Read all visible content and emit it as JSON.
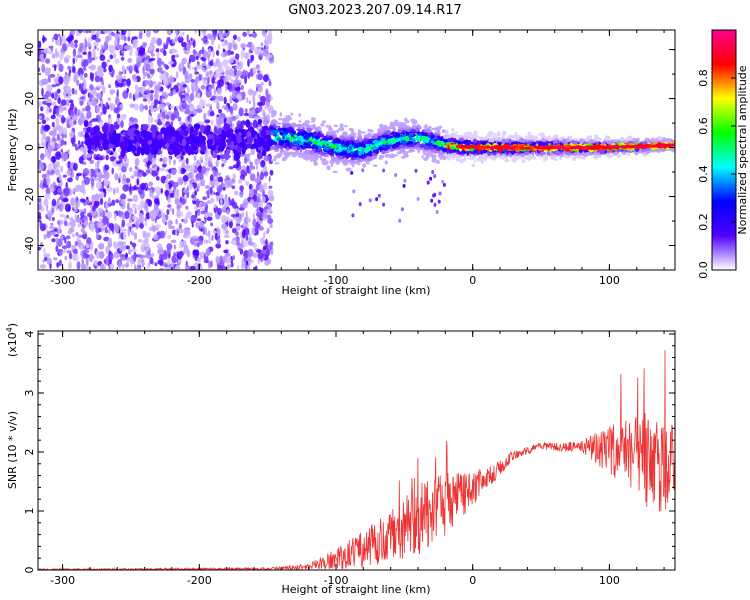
{
  "title": "GN03.2023.207.09.14.R17",
  "chart_data": [
    {
      "type": "heatmap",
      "xlabel": "Height of straight line (km)",
      "ylabel": "Frequency (Hz)",
      "xlim": [
        -318,
        148
      ],
      "ylim": [
        -50,
        48
      ],
      "xticks": [
        -300,
        -200,
        -100,
        0,
        100
      ],
      "yticks": [
        -40,
        -20,
        0,
        20,
        40
      ],
      "noise_region_x": [
        -318,
        -147
      ],
      "band_center": [
        {
          "x": -147,
          "y": 5
        },
        {
          "x": -120,
          "y": 3
        },
        {
          "x": -100,
          "y": 0
        },
        {
          "x": -80,
          "y": -1
        },
        {
          "x": -60,
          "y": 3
        },
        {
          "x": -40,
          "y": 4
        },
        {
          "x": -20,
          "y": 1
        },
        {
          "x": 0,
          "y": 0
        },
        {
          "x": 50,
          "y": 0
        },
        {
          "x": 100,
          "y": 0
        },
        {
          "x": 148,
          "y": 1
        }
      ],
      "colorbar": {
        "label": "Normalized spectral amplitude",
        "range": [
          0,
          1
        ],
        "ticks": [
          "0.0",
          "0.2",
          "0.4",
          "0.6",
          "0.8"
        ],
        "colors": [
          "#ffffff",
          "#5000ff",
          "#0000ff",
          "#00ffff",
          "#00ff00",
          "#ffff00",
          "#ff0000",
          "#ff0090"
        ]
      }
    },
    {
      "type": "line",
      "xlabel": "Height of straight line (km)",
      "ylabel": "SNR (10 * v/v)",
      "scale_label": "(x10",
      "scale_exponent": "4",
      "scale_close": ")",
      "xlim": [
        -318,
        148
      ],
      "ylim": [
        0,
        4.05
      ],
      "xticks": [
        -300,
        -200,
        -100,
        0,
        100
      ],
      "yticks": [
        0,
        1,
        2,
        3,
        4
      ],
      "color": "#ee3333",
      "envelope": [
        {
          "x": -318,
          "mean": 0.01,
          "spread": 0.01
        },
        {
          "x": -150,
          "mean": 0.02,
          "spread": 0.02
        },
        {
          "x": -120,
          "mean": 0.06,
          "spread": 0.05
        },
        {
          "x": -100,
          "mean": 0.18,
          "spread": 0.18
        },
        {
          "x": -80,
          "mean": 0.35,
          "spread": 0.32
        },
        {
          "x": -60,
          "mean": 0.55,
          "spread": 0.45
        },
        {
          "x": -40,
          "mean": 0.85,
          "spread": 0.6
        },
        {
          "x": -20,
          "mean": 1.1,
          "spread": 0.55
        },
        {
          "x": -5,
          "mean": 1.3,
          "spread": 0.35
        },
        {
          "x": 10,
          "mean": 1.55,
          "spread": 0.2
        },
        {
          "x": 30,
          "mean": 1.95,
          "spread": 0.08
        },
        {
          "x": 50,
          "mean": 2.1,
          "spread": 0.06
        },
        {
          "x": 80,
          "mean": 2.08,
          "spread": 0.1
        },
        {
          "x": 95,
          "mean": 2.05,
          "spread": 0.35
        },
        {
          "x": 110,
          "mean": 2.0,
          "spread": 0.55
        },
        {
          "x": 130,
          "mean": 1.85,
          "spread": 0.85
        },
        {
          "x": 148,
          "mean": 1.7,
          "spread": 0.9
        }
      ]
    }
  ]
}
